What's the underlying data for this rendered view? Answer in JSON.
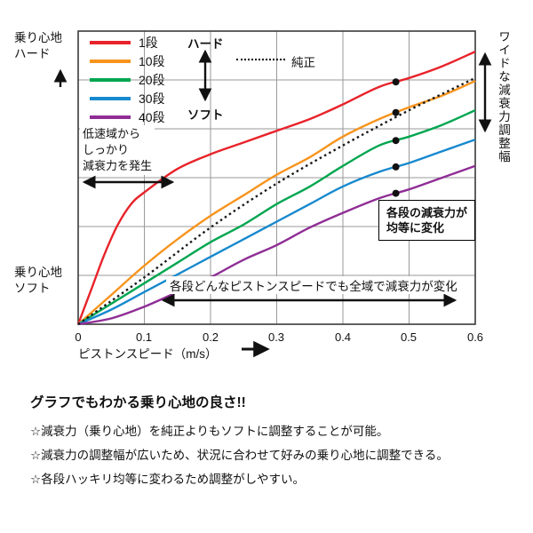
{
  "chart_data": {
    "type": "line",
    "title": "",
    "xlabel": "ピストンスピード（m/s）",
    "ylabel": "乗り心地（ハード／ソフト）",
    "x_tick_labels": [
      "0",
      "0.1",
      "0.2",
      "0.3",
      "0.4",
      "0.5",
      "0.6"
    ],
    "xlim": [
      0,
      0.6
    ],
    "ylim": [
      0,
      100
    ],
    "grid": true,
    "legend_position": "top-left",
    "marker_x": 0.48,
    "series": [
      {
        "name": "1段",
        "color": "#e8232a",
        "dash": false,
        "marker": true,
        "x": [
          0,
          0.02,
          0.04,
          0.06,
          0.08,
          0.1,
          0.15,
          0.2,
          0.25,
          0.3,
          0.35,
          0.4,
          0.455,
          0.5,
          0.55,
          0.6
        ],
        "y": [
          0,
          12,
          24,
          34,
          41,
          45,
          53,
          58,
          62,
          66,
          70,
          75,
          81,
          84,
          88,
          93
        ]
      },
      {
        "name": "10段",
        "color": "#f7941d",
        "dash": false,
        "marker": true,
        "x": [
          0,
          0.05,
          0.1,
          0.15,
          0.2,
          0.25,
          0.3,
          0.35,
          0.4,
          0.455,
          0.5,
          0.55,
          0.6
        ],
        "y": [
          0,
          10,
          20,
          29,
          37,
          44,
          51,
          57,
          64,
          70,
          74,
          78,
          83
        ]
      },
      {
        "name": "20段",
        "color": "#00a650",
        "dash": false,
        "marker": true,
        "x": [
          0,
          0.05,
          0.1,
          0.15,
          0.2,
          0.25,
          0.3,
          0.35,
          0.4,
          0.455,
          0.5,
          0.55,
          0.6
        ],
        "y": [
          0,
          7,
          14,
          21,
          28,
          34,
          41,
          47,
          54,
          61,
          64,
          68,
          73
        ]
      },
      {
        "name": "30段",
        "color": "#1789ce",
        "dash": false,
        "marker": true,
        "x": [
          0,
          0.05,
          0.1,
          0.15,
          0.2,
          0.25,
          0.3,
          0.35,
          0.4,
          0.455,
          0.5,
          0.55,
          0.6
        ],
        "y": [
          0,
          5,
          11,
          17,
          23,
          29,
          35,
          41,
          47,
          52,
          55,
          59,
          63
        ]
      },
      {
        "name": "40段",
        "color": "#8f2d95",
        "dash": false,
        "marker": true,
        "x": [
          0,
          0.05,
          0.1,
          0.15,
          0.2,
          0.25,
          0.3,
          0.35,
          0.4,
          0.455,
          0.5,
          0.55,
          0.6
        ],
        "y": [
          0,
          2,
          6,
          11,
          16,
          22,
          27,
          33,
          38,
          43,
          46,
          50,
          54
        ]
      },
      {
        "name": "純正",
        "color": "#1a1a1a",
        "dash": true,
        "marker": false,
        "x": [
          0,
          0.1,
          0.2,
          0.3,
          0.4,
          0.5,
          0.6
        ],
        "y": [
          0,
          16,
          33,
          48,
          61,
          73,
          84
        ]
      }
    ]
  },
  "labels": {
    "y_top_1": "乗り心地",
    "y_top_2": "ハード",
    "y_bottom_1": "乗り心地",
    "y_bottom_2": "ソフト",
    "legend_hard": "ハード",
    "legend_soft": "ソフト",
    "low_speed_1": "低速域から",
    "low_speed_2": "しっかり",
    "low_speed_3": "減衰力を発生",
    "equal_1": "各段の減衰力が",
    "equal_2": "均等に変化",
    "full_range": "各段どんなピストンスピードでも全域で減衰力が変化",
    "wide_range": "ワイドな減衰力調整幅"
  },
  "notes": {
    "heading": "グラフでもわかる乗り心地の良さ!!",
    "bullets": [
      "☆減衰力（乗り心地）を純正よりもソフトに調整することが可能。",
      "☆減衰力の調整幅が広いため、状況に合わせて好みの乗り心地に調整できる。",
      "☆各段ハッキリ均等に変わるため調整がしやすい。"
    ]
  }
}
